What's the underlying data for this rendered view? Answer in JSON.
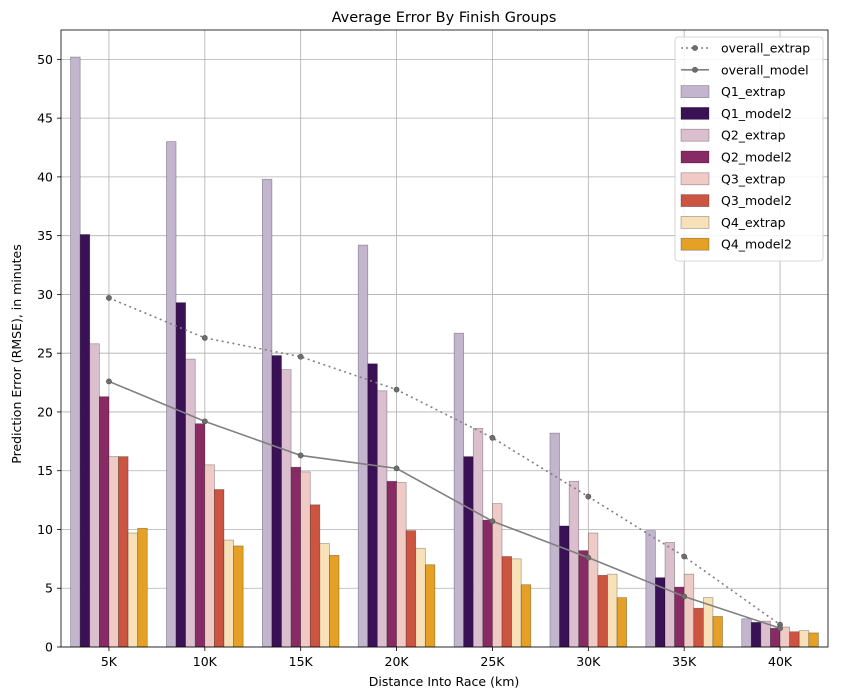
{
  "chart_data": {
    "type": "bar",
    "title": "Average Error By Finish Groups",
    "xlabel": "Distance Into Race (km)",
    "ylabel": "Prediction Error (RMSE), in minutes",
    "categories": [
      "5K",
      "10K",
      "15K",
      "20K",
      "25K",
      "30K",
      "35K",
      "40K"
    ],
    "ylim": [
      0,
      52.5
    ],
    "yticks": [
      0,
      5,
      10,
      15,
      20,
      25,
      30,
      35,
      40,
      45,
      50
    ],
    "grid": true,
    "legend_position": "top-right",
    "bar_series": [
      {
        "name": "Q1_extrap",
        "color": "#c3b5cd",
        "values": [
          50.2,
          43.0,
          39.8,
          34.2,
          26.7,
          18.2,
          9.9,
          2.4
        ]
      },
      {
        "name": "Q1_model2",
        "color": "#3b1155",
        "values": [
          35.1,
          29.3,
          24.8,
          24.1,
          16.2,
          10.3,
          5.9,
          2.1
        ]
      },
      {
        "name": "Q2_extrap",
        "color": "#dcbfcf",
        "values": [
          25.8,
          24.5,
          23.6,
          21.8,
          18.6,
          14.1,
          8.9,
          2.2
        ]
      },
      {
        "name": "Q2_model2",
        "color": "#882b64",
        "values": [
          21.3,
          19.0,
          15.3,
          14.1,
          10.8,
          8.2,
          5.1,
          1.6
        ]
      },
      {
        "name": "Q3_extrap",
        "color": "#f0cbc5",
        "values": [
          16.2,
          15.5,
          14.9,
          14.0,
          12.2,
          9.7,
          6.2,
          1.7
        ]
      },
      {
        "name": "Q3_model2",
        "color": "#cc5542",
        "values": [
          16.2,
          13.4,
          12.1,
          9.9,
          7.7,
          6.1,
          3.3,
          1.3
        ]
      },
      {
        "name": "Q4_extrap",
        "color": "#f8e0b8",
        "values": [
          9.7,
          9.1,
          8.8,
          8.4,
          7.5,
          6.2,
          4.2,
          1.4
        ]
      },
      {
        "name": "Q4_model2",
        "color": "#e4a126",
        "values": [
          10.1,
          8.6,
          7.8,
          7.0,
          5.3,
          4.2,
          2.6,
          1.2
        ]
      }
    ],
    "line_series": [
      {
        "name": "overall_extrap",
        "color": "#808080",
        "style": "dotted",
        "values": [
          29.7,
          26.3,
          24.7,
          21.9,
          17.8,
          12.8,
          7.7,
          1.9
        ]
      },
      {
        "name": "overall_model",
        "color": "#808080",
        "style": "solid",
        "values": [
          22.6,
          19.2,
          16.3,
          15.2,
          10.7,
          7.6,
          4.3,
          1.6
        ]
      }
    ],
    "legend_order": [
      "overall_extrap",
      "overall_model",
      "Q1_extrap",
      "Q1_model2",
      "Q2_extrap",
      "Q2_model2",
      "Q3_extrap",
      "Q3_model2",
      "Q4_extrap",
      "Q4_model2"
    ]
  }
}
